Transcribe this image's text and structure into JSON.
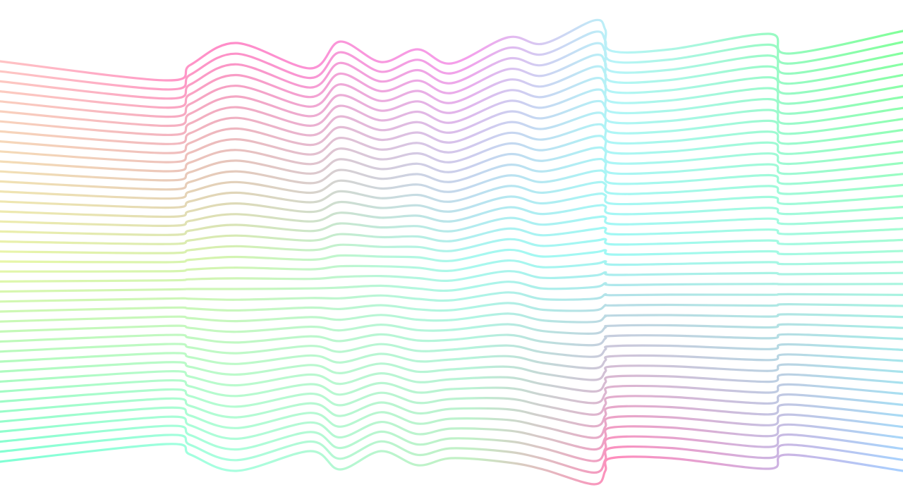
{
  "artwork": {
    "background": "#ffffff",
    "line_count": 41,
    "palette": {
      "top_row": [
        "#ffc4c4",
        "#ff8cc8",
        "#f4a0ec",
        "#b8f4f8",
        "#80ff98"
      ],
      "middle_row": [
        "#e8f6a8",
        "#d4f4b0",
        "#a8f8f0",
        "#a0f8f4",
        "#a8fcd8"
      ],
      "bottom_row": [
        "#80ffd4",
        "#a8ffe0",
        "#c4f0c4",
        "#ff8cbc",
        "#a8d0ff"
      ]
    }
  }
}
